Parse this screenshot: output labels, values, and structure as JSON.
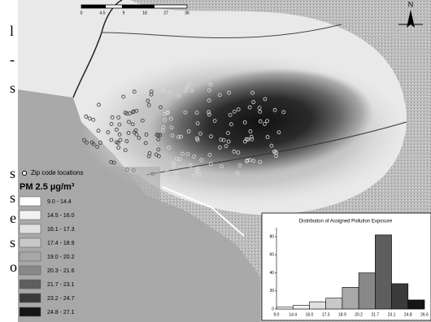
{
  "margin_fragments": [
    "l",
    "-",
    "s",
    "s",
    "s",
    "e",
    "s",
    "o"
  ],
  "scale_bar": {
    "labels": [
      "0",
      "4.5",
      "9",
      "18",
      "27",
      "36"
    ]
  },
  "compass": "N",
  "legend": {
    "points_label": "Zip code locations",
    "title": "PM 2.5 µg/m³",
    "classes": [
      {
        "label": "9.0 - 14.4",
        "color": "#ffffff"
      },
      {
        "label": "14.5 - 16.0",
        "color": "#f2f2f2"
      },
      {
        "label": "16.1 - 17.3",
        "color": "#e0e0e0"
      },
      {
        "label": "17.4 - 18.9",
        "color": "#c8c8c8"
      },
      {
        "label": "19.0 - 20.2",
        "color": "#a8a8a8"
      },
      {
        "label": "20.3 - 21.6",
        "color": "#888888"
      },
      {
        "label": "21.7 - 23.1",
        "color": "#5e5e5e"
      },
      {
        "label": "23.2 - 24.7",
        "color": "#3a3a3a"
      },
      {
        "label": "24.8 - 27.1",
        "color": "#151515"
      }
    ]
  },
  "inset": {
    "title": "Distribution of Assigned Pollution Exposure",
    "bin_labels": [
      "9.0",
      "14.4",
      "16.0",
      "17.3",
      "18.9",
      "20.2",
      "21.7",
      "23.1",
      "24.8",
      "26.6"
    ],
    "counts": [
      2,
      4,
      8,
      12,
      24,
      40,
      82,
      28,
      10
    ],
    "colors": [
      "#ffffff",
      "#f2f2f2",
      "#e0e0e0",
      "#c8c8c8",
      "#a8a8a8",
      "#888888",
      "#5e5e5e",
      "#3a3a3a",
      "#151515"
    ],
    "ylim": [
      0,
      90
    ],
    "yticks": [
      0,
      20,
      40,
      60,
      80
    ]
  }
}
